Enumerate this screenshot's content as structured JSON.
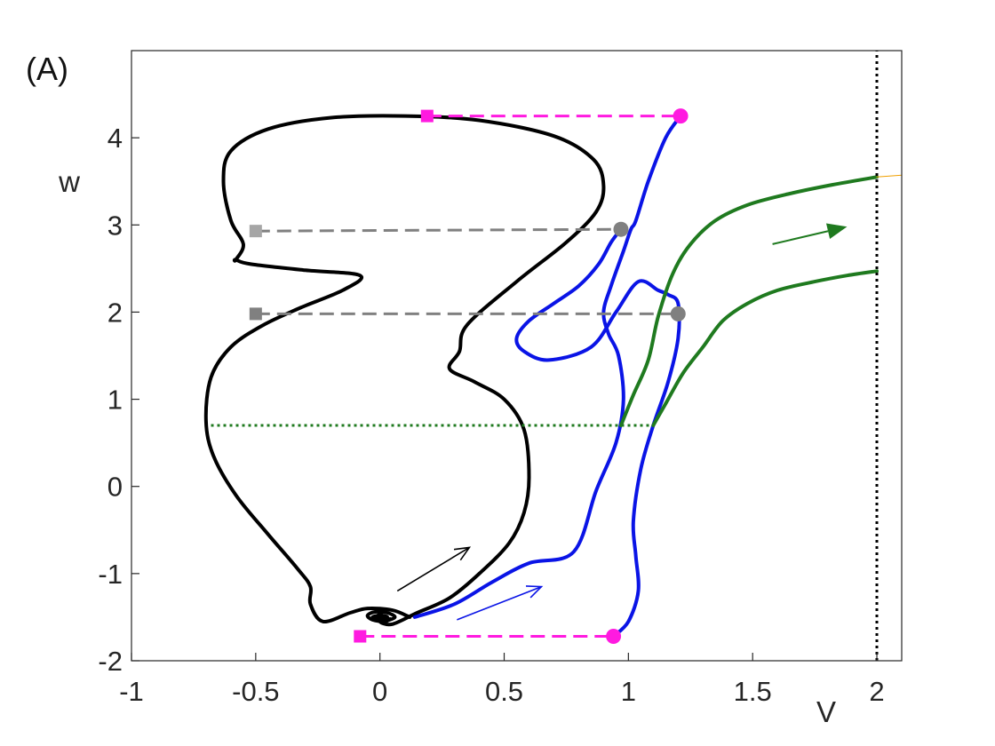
{
  "chart_data": {
    "type": "line",
    "panel_label": "(A)",
    "xlabel": "V",
    "ylabel": "w",
    "xlim": [
      -1,
      2.1
    ],
    "ylim": [
      -2,
      5
    ],
    "xticks": [
      "-1",
      "-0.5",
      "0",
      "0.5",
      "1",
      "1.5",
      "2"
    ],
    "yticks": [
      "-2",
      "-1",
      "0",
      "1",
      "2",
      "3",
      "4"
    ],
    "grid": false,
    "colors": {
      "black_curve": "#000000",
      "blue_curve": "#0a14e6",
      "green_curve": "#1f7a1f",
      "magenta": "#ff1ae0",
      "grey": "#808080",
      "light_grey": "#a6a6a6"
    },
    "series": [
      {
        "id": "black-trajectory",
        "color": "#000000",
        "style": "solid",
        "x": [
          0.12,
          0.05,
          -0.05,
          -0.12,
          -0.23,
          -0.28,
          -0.28,
          -0.33,
          -0.45,
          -0.58,
          -0.67,
          -0.7,
          -0.68,
          -0.6,
          -0.47,
          -0.32,
          -0.15,
          -0.08,
          -0.3,
          -0.52,
          -0.58,
          -0.58,
          -0.55,
          -0.6,
          -0.63,
          -0.6,
          -0.45,
          -0.2,
          0.1,
          0.4,
          0.7,
          0.86,
          0.9,
          0.87,
          0.75,
          0.55,
          0.35,
          0.32,
          0.28,
          0.38,
          0.5,
          0.58,
          0.6,
          0.58,
          0.52,
          0.4,
          0.28,
          0.15,
          0.05,
          0.0,
          0.03,
          0.0,
          -0.03,
          0.0,
          0.0
        ],
        "y": [
          -1.5,
          -1.42,
          -1.4,
          -1.45,
          -1.55,
          -1.35,
          -1.15,
          -0.95,
          -0.55,
          -0.1,
          0.35,
          0.75,
          1.25,
          1.6,
          1.85,
          2.05,
          2.25,
          2.42,
          2.48,
          2.55,
          2.6,
          2.6,
          2.78,
          3.05,
          3.5,
          3.85,
          4.1,
          4.23,
          4.25,
          4.2,
          4.02,
          3.75,
          3.45,
          3.15,
          2.8,
          2.35,
          1.85,
          1.55,
          1.35,
          1.2,
          1.0,
          0.65,
          0.1,
          -0.3,
          -0.65,
          -1.0,
          -1.28,
          -1.45,
          -1.58,
          -1.55,
          -1.5,
          -1.48,
          -1.5,
          -1.52,
          -1.5
        ]
      },
      {
        "id": "black-spiral-inner",
        "color": "#000000",
        "style": "solid",
        "x": [
          0.02,
          0.06,
          0.03,
          -0.02,
          -0.05,
          -0.03,
          0.02,
          0.04
        ],
        "y": [
          -1.55,
          -1.5,
          -1.45,
          -1.44,
          -1.48,
          -1.53,
          -1.55,
          -1.52
        ]
      },
      {
        "id": "blue-trajectory-1",
        "color": "#0a14e6",
        "style": "solid",
        "x": [
          0.14,
          0.3,
          0.45,
          0.6,
          0.78,
          0.87,
          0.95,
          0.98,
          0.96,
          0.92,
          0.9,
          0.93,
          0.98,
          1.01,
          1.03,
          1.08,
          1.15,
          1.21
        ],
        "y": [
          -1.5,
          -1.35,
          -1.1,
          -0.88,
          -0.75,
          -0.05,
          0.5,
          1.0,
          1.5,
          1.75,
          2.0,
          2.3,
          2.7,
          2.95,
          3.05,
          3.5,
          4.0,
          4.25
        ]
      },
      {
        "id": "blue-trajectory-2",
        "color": "#0a14e6",
        "style": "solid",
        "x": [
          0.94,
          1.0,
          1.04,
          1.03,
          1.02,
          1.05,
          1.1,
          1.16,
          1.2,
          1.2,
          1.16,
          1.12,
          1.04,
          0.95,
          0.85,
          0.68,
          0.58,
          0.55,
          0.6,
          0.7,
          0.8,
          0.88,
          0.93,
          0.97
        ],
        "y": [
          -1.72,
          -1.55,
          -1.2,
          -0.8,
          -0.4,
          0.2,
          0.7,
          1.2,
          1.7,
          2.1,
          2.2,
          2.25,
          2.35,
          2.0,
          1.6,
          1.45,
          1.55,
          1.7,
          1.9,
          2.1,
          2.3,
          2.55,
          2.8,
          2.95
        ]
      },
      {
        "id": "green-trajectory-1",
        "color": "#1f7a1f",
        "style": "solid",
        "x": [
          0.97,
          1.02,
          1.08,
          1.12,
          1.18,
          1.25,
          1.35,
          1.48,
          1.65,
          1.82,
          2.0
        ],
        "y": [
          0.7,
          1.05,
          1.45,
          1.95,
          2.45,
          2.78,
          3.05,
          3.23,
          3.36,
          3.46,
          3.55
        ]
      },
      {
        "id": "green-trajectory-2",
        "color": "#1f7a1f",
        "style": "solid",
        "x": [
          1.1,
          1.15,
          1.22,
          1.3,
          1.38,
          1.48,
          1.6,
          1.75,
          1.88,
          2.0
        ],
        "y": [
          0.7,
          0.95,
          1.3,
          1.6,
          1.9,
          2.1,
          2.25,
          2.35,
          2.42,
          2.47
        ]
      },
      {
        "id": "magenta-top-dashed",
        "color": "#ff1ae0",
        "style": "dashed",
        "x": [
          0.19,
          1.21
        ],
        "y": [
          4.25,
          4.25
        ]
      },
      {
        "id": "magenta-bottom-dashed",
        "color": "#ff1ae0",
        "style": "dashed",
        "x": [
          -0.08,
          0.94
        ],
        "y": [
          -1.72,
          -1.72
        ]
      },
      {
        "id": "grey-upper-dashed",
        "color": "#808080",
        "style": "dashed",
        "x": [
          -0.5,
          0.97
        ],
        "y": [
          2.93,
          2.95
        ]
      },
      {
        "id": "grey-lower-dashed",
        "color": "#808080",
        "style": "dashed",
        "x": [
          -0.5,
          1.2
        ],
        "y": [
          1.98,
          1.98
        ]
      },
      {
        "id": "green-dotted-level",
        "color": "#1f7a1f",
        "style": "dotted",
        "x": [
          -0.68,
          1.1
        ],
        "y": [
          0.7,
          0.7
        ]
      },
      {
        "id": "black-dotted-vertical",
        "color": "#000000",
        "style": "dotted",
        "x": [
          2.0,
          2.0
        ],
        "y": [
          -2,
          5
        ]
      },
      {
        "id": "orange-thin",
        "color": "#f0a000",
        "style": "solid",
        "x": [
          2.0,
          2.1
        ],
        "y": [
          3.55,
          3.57
        ]
      }
    ],
    "markers": [
      {
        "id": "magenta-square-top",
        "shape": "square",
        "color": "#ff1ae0",
        "x": 0.19,
        "y": 4.25
      },
      {
        "id": "magenta-circle-top",
        "shape": "circle",
        "color": "#ff1ae0",
        "x": 1.21,
        "y": 4.25
      },
      {
        "id": "magenta-square-bottom",
        "shape": "square",
        "color": "#ff1ae0",
        "x": -0.08,
        "y": -1.72
      },
      {
        "id": "magenta-circle-bottom",
        "shape": "circle",
        "color": "#ff1ae0",
        "x": 0.94,
        "y": -1.72
      },
      {
        "id": "grey-square-upper",
        "shape": "square",
        "color": "#a6a6a6",
        "x": -0.5,
        "y": 2.93
      },
      {
        "id": "grey-circle-upper",
        "shape": "circle",
        "color": "#808080",
        "x": 0.97,
        "y": 2.95
      },
      {
        "id": "grey-square-lower",
        "shape": "square",
        "color": "#808080",
        "x": -0.5,
        "y": 1.98
      },
      {
        "id": "grey-circle-lower",
        "shape": "circle",
        "color": "#808080",
        "x": 1.2,
        "y": 1.98
      },
      {
        "id": "black-dot-center",
        "shape": "circle-small",
        "color": "#000000",
        "x": 0.0,
        "y": -1.5
      }
    ],
    "arrows": [
      {
        "id": "black-arrow",
        "color": "#000000",
        "x": [
          0.07,
          0.36
        ],
        "y": -1.2,
        "y_end": -0.7
      },
      {
        "id": "blue-arrow",
        "color": "#0a14e6",
        "x": [
          0.31,
          0.65
        ],
        "y": -1.53,
        "y_end": -1.15
      },
      {
        "id": "green-arrow",
        "color": "#1f7a1f",
        "x": [
          1.58,
          1.88
        ],
        "y": 2.78,
        "y_end": 2.98
      }
    ]
  }
}
